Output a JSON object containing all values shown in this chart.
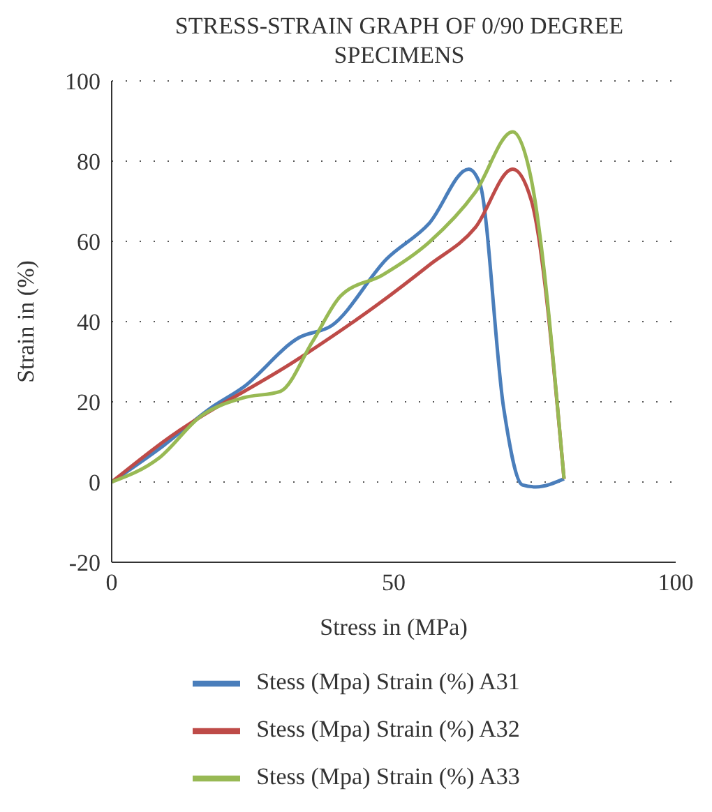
{
  "chart_data": {
    "type": "line",
    "title": "STRESS-STRAIN GRAPH OF 0/90 DEGREE SPECIMENS",
    "xlabel": "Stress in (MPa)",
    "ylabel": "Strain in (%)",
    "xlim": [
      0,
      100
    ],
    "xticks": [
      0,
      50,
      100
    ],
    "ylim": [
      -20,
      100
    ],
    "yticks": [
      -20,
      0,
      20,
      40,
      60,
      80,
      100
    ],
    "grid": "y",
    "legend": "bottom",
    "marker": "none",
    "line_style": "solid",
    "series": [
      {
        "name": "Stess (Mpa) Strain (%) A31",
        "color": "#4a7ebb",
        "x": [
          0,
          9.2,
          17.5,
          23.3,
          33.2,
          39,
          48.8,
          56.3,
          63.3,
          65.3,
          69.5,
          72.8,
          75.2,
          80.2
        ],
        "values": [
          0,
          9.1,
          18.4,
          23.6,
          36,
          39,
          55.7,
          64.5,
          78,
          74.3,
          18.4,
          -0.7,
          -1.2,
          0.8
        ]
      },
      {
        "name": "Stess (Mpa) Strain (%) A32",
        "color": "#be4b48",
        "x": [
          0,
          9.2,
          33.2,
          47.2,
          56.3,
          64.5,
          71.1,
          74.4,
          80.2
        ],
        "values": [
          0,
          10.1,
          30.8,
          44.3,
          54.1,
          63.5,
          78,
          70.2,
          0.8
        ]
      },
      {
        "name": "Stess (Mpa) Strain (%) A33",
        "color": "#98b954",
        "x": [
          0,
          8.4,
          15.8,
          23.3,
          29.9,
          35.6,
          40.6,
          48,
          56.3,
          64.5,
          71.1,
          74.4,
          80.2
        ],
        "values": [
          0,
          6,
          16.4,
          21,
          22.6,
          35,
          46.4,
          51.6,
          59.8,
          72.3,
          87.3,
          75.4,
          0.8
        ]
      }
    ]
  }
}
